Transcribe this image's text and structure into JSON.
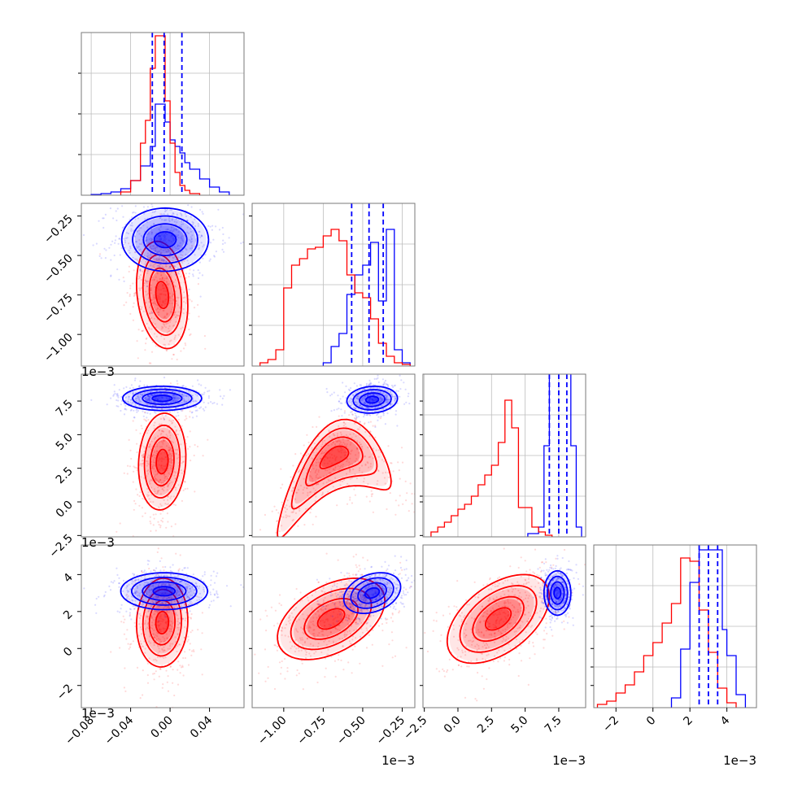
{
  "chart_data": {
    "type": "corner",
    "colors": {
      "series_a": "#0000ff",
      "series_b": "#ff0000"
    },
    "parameters": [
      {
        "range": [
          -0.09,
          0.075
        ],
        "scale_label": "",
        "ticks": [
          -0.08,
          -0.04,
          0.0,
          0.04
        ],
        "tick_labels": [
          "−0.08",
          "−0.04",
          "0.00",
          "0.04"
        ]
      },
      {
        "range": [
          -1.2,
          -0.17
        ],
        "scale_label": "1e−3",
        "ticks": [
          -1.0,
          -0.75,
          -0.5,
          -0.25
        ],
        "tick_labels": [
          "−1.00",
          "−0.75",
          "−0.50",
          "−0.25"
        ]
      },
      {
        "range": [
          -2.6,
          9.5
        ],
        "scale_label": "1e−3",
        "ticks": [
          -2.5,
          0.0,
          2.5,
          5.0,
          7.5
        ],
        "tick_labels": [
          "−2.5",
          "0.0",
          "2.5",
          "5.0",
          "7.5"
        ]
      },
      {
        "range": [
          -3.2,
          5.6
        ],
        "scale_label": "1e−3",
        "ticks": [
          -2,
          0,
          2,
          4
        ],
        "tick_labels": [
          "−2",
          "0",
          "2",
          "4"
        ]
      }
    ],
    "marginals": [
      {
        "ylim": [
          0,
          1.0
        ],
        "grid_y": [
          0.25,
          0.5,
          0.75
        ],
        "quantile_lines": [
          -0.018,
          -0.006,
          0.012
        ],
        "series_a_edges": [
          -0.08,
          -0.07,
          -0.06,
          -0.05,
          -0.04,
          -0.03,
          -0.02,
          -0.015,
          -0.01,
          -0.005,
          0.0,
          0.005,
          0.01,
          0.015,
          0.02,
          0.03,
          0.04,
          0.05,
          0.06
        ],
        "series_a_heights": [
          0.004,
          0.01,
          0.02,
          0.04,
          0.09,
          0.18,
          0.3,
          0.56,
          0.56,
          0.45,
          0.34,
          0.3,
          0.26,
          0.2,
          0.16,
          0.1,
          0.05,
          0.02
        ],
        "series_b_edges": [
          -0.05,
          -0.04,
          -0.03,
          -0.025,
          -0.02,
          -0.015,
          -0.01,
          -0.005,
          0.0,
          0.005,
          0.01,
          0.015,
          0.02,
          0.03
        ],
        "series_b_heights": [
          0.02,
          0.09,
          0.32,
          0.46,
          0.78,
          0.98,
          0.98,
          0.58,
          0.32,
          0.14,
          0.06,
          0.03,
          0.01
        ]
      },
      {
        "ylim": [
          0,
          1.0
        ],
        "grid_y": [
          0.25,
          0.5,
          0.75
        ],
        "quantile_lines": [
          -0.57,
          -0.46,
          -0.37
        ],
        "series_a_edges": [
          -0.75,
          -0.7,
          -0.65,
          -0.6,
          -0.55,
          -0.5,
          -0.45,
          -0.4,
          -0.35,
          -0.3,
          -0.25,
          -0.2
        ],
        "series_a_heights": [
          0.02,
          0.12,
          0.2,
          0.44,
          0.56,
          0.62,
          0.76,
          0.4,
          0.84,
          0.1,
          0.02
        ],
        "series_b_edges": [
          -1.15,
          -1.1,
          -1.05,
          -1.0,
          -0.95,
          -0.9,
          -0.85,
          -0.8,
          -0.75,
          -0.7,
          -0.65,
          -0.6,
          -0.55,
          -0.5,
          -0.45,
          -0.4,
          -0.35,
          -0.3,
          -0.25,
          -0.2
        ],
        "series_b_heights": [
          0.02,
          0.04,
          0.1,
          0.48,
          0.62,
          0.66,
          0.72,
          0.73,
          0.8,
          0.84,
          0.77,
          0.56,
          0.45,
          0.42,
          0.29,
          0.14,
          0.06,
          0.02,
          0.01
        ]
      },
      {
        "ylim": [
          0,
          1.0
        ],
        "grid_y": [
          0.25,
          0.5,
          0.75
        ],
        "quantile_lines": [
          6.8,
          7.5,
          8.1
        ],
        "series_a_edges": [
          5.2,
          6.0,
          6.4,
          6.8,
          7.2,
          7.6,
          8.0,
          8.4,
          8.8,
          9.2
        ],
        "series_a_heights": [
          0.02,
          0.06,
          0.56,
          1.05,
          1.05,
          1.05,
          1.05,
          0.56,
          0.06
        ],
        "series_b_edges": [
          -2.0,
          -1.5,
          -1.0,
          -0.5,
          0.0,
          0.5,
          1.0,
          1.5,
          2.0,
          2.5,
          3.0,
          3.5,
          4.0,
          4.5,
          5.0,
          5.5,
          6.0,
          6.5,
          7.0
        ],
        "series_b_heights": [
          0.03,
          0.06,
          0.09,
          0.13,
          0.17,
          0.2,
          0.25,
          0.32,
          0.38,
          0.44,
          0.58,
          0.84,
          0.67,
          0.18,
          0.18,
          0.06,
          0.03,
          0.01
        ]
      },
      {
        "ylim": [
          0,
          1.0
        ],
        "grid_y": [
          0.25,
          0.5,
          0.75
        ],
        "quantile_lines": [
          2.5,
          3.0,
          3.5
        ],
        "series_a_edges": [
          1.0,
          1.5,
          2.0,
          2.5,
          2.75,
          3.0,
          3.25,
          3.5,
          3.75,
          4.0,
          4.5,
          5.0
        ],
        "series_a_heights": [
          0.06,
          0.36,
          0.77,
          0.97,
          0.97,
          0.97,
          0.97,
          0.97,
          0.48,
          0.32,
          0.08
        ],
        "series_b_edges": [
          -3.0,
          -2.5,
          -2.0,
          -1.5,
          -1.0,
          -0.5,
          0.0,
          0.5,
          1.0,
          1.5,
          2.0,
          2.5,
          3.0,
          3.5,
          4.0,
          4.5
        ],
        "series_b_heights": [
          0.02,
          0.04,
          0.09,
          0.14,
          0.22,
          0.32,
          0.4,
          0.52,
          0.64,
          0.92,
          0.9,
          0.6,
          0.34,
          0.12,
          0.03
        ]
      }
    ],
    "pairs": [
      {
        "row": 1,
        "col": 0,
        "series_a": {
          "mean": [
            -0.005,
            -0.4
          ],
          "sd": [
            0.022,
            0.1
          ],
          "rho": 0.0
        },
        "series_b": {
          "mean": [
            -0.008,
            -0.75
          ],
          "sd": [
            0.013,
            0.17
          ],
          "rho": -0.2
        }
      },
      {
        "row": 2,
        "col": 0,
        "series_a": {
          "mean": [
            -0.008,
            7.7
          ],
          "sd": [
            0.02,
            0.45
          ],
          "rho": 0.0
        },
        "series_b": {
          "mean": [
            -0.008,
            3.0
          ],
          "sd": [
            0.012,
            1.8
          ],
          "rho": 0.1
        }
      },
      {
        "row": 2,
        "col": 1,
        "series_a": {
          "mean": [
            -0.44,
            7.6
          ],
          "sd": [
            0.08,
            0.5
          ],
          "rho": 0.1
        },
        "series_b": {
          "mean": [
            -0.68,
            3.4
          ],
          "sd": [
            0.18,
            1.6
          ],
          "rho": 0.6,
          "curvature": 5.0
        }
      },
      {
        "row": 3,
        "col": 0,
        "series_a": {
          "mean": [
            -0.006,
            3.1
          ],
          "sd": [
            0.022,
            0.5
          ],
          "rho": 0.0
        },
        "series_b": {
          "mean": [
            -0.008,
            1.4
          ],
          "sd": [
            0.013,
            1.2
          ],
          "rho": 0.05
        }
      },
      {
        "row": 3,
        "col": 1,
        "series_a": {
          "mean": [
            -0.44,
            3.0
          ],
          "sd": [
            0.09,
            0.55
          ],
          "rho": 0.3
        },
        "series_b": {
          "mean": [
            -0.7,
            1.6
          ],
          "sd": [
            0.17,
            1.1
          ],
          "rho": 0.45
        }
      },
      {
        "row": 3,
        "col": 2,
        "series_a": {
          "mean": [
            7.4,
            3.0
          ],
          "sd": [
            0.5,
            0.6
          ],
          "rho": 0.0
        },
        "series_b": {
          "mean": [
            3.0,
            1.6
          ],
          "sd": [
            1.9,
            1.2
          ],
          "rho": 0.5
        }
      }
    ],
    "xlabel": "",
    "ylabel": "",
    "title": "",
    "legend": "none"
  }
}
